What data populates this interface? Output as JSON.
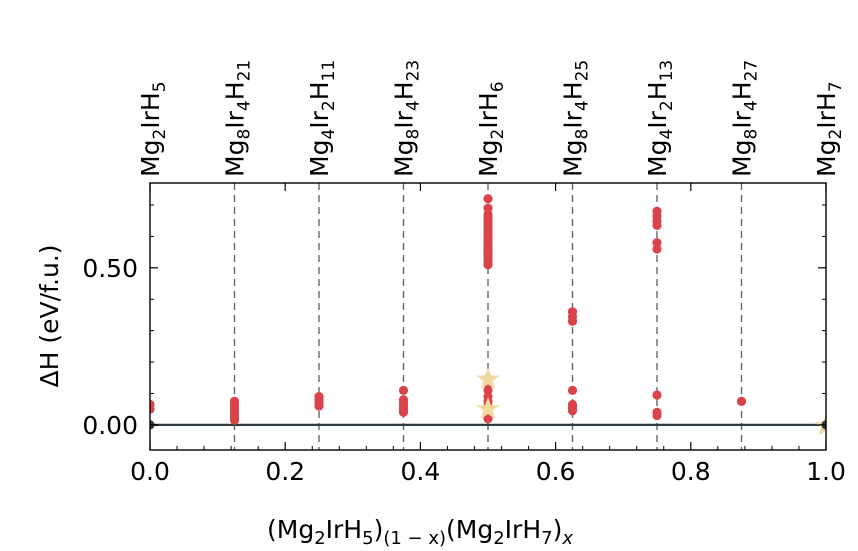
{
  "chart_data": {
    "type": "scatter",
    "xlabel": {
      "base": "(Mg",
      "s1": "2",
      "mid1": "IrH",
      "s2": "5",
      "mid2": ")",
      "s3": "(1 − x)",
      "mid3": "(Mg",
      "s4": "2",
      "mid4": "IrH",
      "s5": "7",
      "mid5": ")",
      "s6": "x"
    },
    "ylabel": "ΔH (eV/f.u.)",
    "xlim": [
      0,
      1
    ],
    "ylim": [
      -0.08,
      0.77
    ],
    "x_ticks": [
      0.0,
      0.2,
      0.4,
      0.6,
      0.8,
      1.0
    ],
    "x_tick_labels": [
      "0.0",
      "0.2",
      "0.4",
      "0.6",
      "0.8",
      "1.0"
    ],
    "y_ticks": [
      0.0,
      0.5
    ],
    "y_tick_labels": [
      "0.00",
      "0.50"
    ],
    "top_axis_labels": [
      {
        "x": 0.0,
        "parts": [
          [
            "Mg",
            ""
          ],
          [
            "2",
            "s"
          ],
          [
            "IrH",
            ""
          ],
          [
            "5",
            "s"
          ]
        ]
      },
      {
        "x": 0.125,
        "parts": [
          [
            "Mg",
            ""
          ],
          [
            "8",
            "s"
          ],
          [
            "Ir",
            ""
          ],
          [
            "4",
            "s"
          ],
          [
            "H",
            ""
          ],
          [
            "21",
            "s"
          ]
        ]
      },
      {
        "x": 0.25,
        "parts": [
          [
            "Mg",
            ""
          ],
          [
            "4",
            "s"
          ],
          [
            "Ir",
            ""
          ],
          [
            "2",
            "s"
          ],
          [
            "H",
            ""
          ],
          [
            "11",
            "s"
          ]
        ]
      },
      {
        "x": 0.375,
        "parts": [
          [
            "Mg",
            ""
          ],
          [
            "8",
            "s"
          ],
          [
            "Ir",
            ""
          ],
          [
            "4",
            "s"
          ],
          [
            "H",
            ""
          ],
          [
            "23",
            "s"
          ]
        ]
      },
      {
        "x": 0.5,
        "parts": [
          [
            "Mg",
            ""
          ],
          [
            "2",
            "s"
          ],
          [
            "IrH",
            ""
          ],
          [
            "6",
            "s"
          ]
        ]
      },
      {
        "x": 0.625,
        "parts": [
          [
            "Mg",
            ""
          ],
          [
            "8",
            "s"
          ],
          [
            "Ir",
            ""
          ],
          [
            "4",
            "s"
          ],
          [
            "H",
            ""
          ],
          [
            "25",
            "s"
          ]
        ]
      },
      {
        "x": 0.75,
        "parts": [
          [
            "Mg",
            ""
          ],
          [
            "4",
            "s"
          ],
          [
            "Ir",
            ""
          ],
          [
            "2",
            "s"
          ],
          [
            "H",
            ""
          ],
          [
            "13",
            "s"
          ]
        ]
      },
      {
        "x": 0.875,
        "parts": [
          [
            "Mg",
            ""
          ],
          [
            "8",
            "s"
          ],
          [
            "Ir",
            ""
          ],
          [
            "4",
            "s"
          ],
          [
            "H",
            ""
          ],
          [
            "27",
            "s"
          ]
        ]
      },
      {
        "x": 1.0,
        "parts": [
          [
            "Mg",
            ""
          ],
          [
            "2",
            "s"
          ],
          [
            "IrH",
            ""
          ],
          [
            "7",
            "s"
          ]
        ]
      }
    ],
    "dashed_lines_x": [
      0.125,
      0.25,
      0.375,
      0.5,
      0.625,
      0.75,
      0.875
    ],
    "hull_line": {
      "x": [
        0,
        1
      ],
      "y": [
        0,
        0
      ],
      "color": "#2f3b40"
    },
    "series": [
      {
        "marker": "circle",
        "color": "#d9434a",
        "points": [
          [
            0.0,
            0.065
          ],
          [
            0.0,
            0.05
          ],
          [
            0.125,
            0.075
          ],
          [
            0.125,
            0.065
          ],
          [
            0.125,
            0.055
          ],
          [
            0.125,
            0.045
          ],
          [
            0.125,
            0.035
          ],
          [
            0.125,
            0.025
          ],
          [
            0.125,
            0.015
          ],
          [
            0.25,
            0.09
          ],
          [
            0.25,
            0.08
          ],
          [
            0.25,
            0.07
          ],
          [
            0.25,
            0.06
          ],
          [
            0.375,
            0.11
          ],
          [
            0.375,
            0.08
          ],
          [
            0.375,
            0.07
          ],
          [
            0.375,
            0.06
          ],
          [
            0.375,
            0.05
          ],
          [
            0.375,
            0.04
          ],
          [
            0.5,
            0.72
          ],
          [
            0.5,
            0.69
          ],
          [
            0.5,
            0.67
          ],
          [
            0.5,
            0.66
          ],
          [
            0.5,
            0.65
          ],
          [
            0.5,
            0.64
          ],
          [
            0.5,
            0.63
          ],
          [
            0.5,
            0.62
          ],
          [
            0.5,
            0.61
          ],
          [
            0.5,
            0.6
          ],
          [
            0.5,
            0.59
          ],
          [
            0.5,
            0.58
          ],
          [
            0.5,
            0.57
          ],
          [
            0.5,
            0.56
          ],
          [
            0.5,
            0.55
          ],
          [
            0.5,
            0.54
          ],
          [
            0.5,
            0.53
          ],
          [
            0.5,
            0.52
          ],
          [
            0.5,
            0.51
          ],
          [
            0.5,
            0.13
          ],
          [
            0.5,
            0.11
          ],
          [
            0.5,
            0.09
          ],
          [
            0.5,
            0.075
          ],
          [
            0.5,
            0.06
          ],
          [
            0.5,
            0.02
          ],
          [
            0.625,
            0.36
          ],
          [
            0.625,
            0.345
          ],
          [
            0.625,
            0.33
          ],
          [
            0.625,
            0.11
          ],
          [
            0.625,
            0.065
          ],
          [
            0.625,
            0.055
          ],
          [
            0.625,
            0.045
          ],
          [
            0.75,
            0.68
          ],
          [
            0.75,
            0.665
          ],
          [
            0.75,
            0.65
          ],
          [
            0.75,
            0.635
          ],
          [
            0.75,
            0.58
          ],
          [
            0.75,
            0.56
          ],
          [
            0.75,
            0.095
          ],
          [
            0.75,
            0.04
          ],
          [
            0.75,
            0.03
          ],
          [
            0.875,
            0.075
          ]
        ]
      },
      {
        "marker": "star",
        "color": "#f2d9a0",
        "points": [
          [
            0.5,
            0.145
          ],
          [
            0.5,
            0.05
          ],
          [
            1.0,
            -0.003
          ]
        ]
      },
      {
        "marker": "circle",
        "color": "#2f3b40",
        "points": [
          [
            0.0,
            0.0
          ],
          [
            1.0,
            0.0
          ]
        ]
      }
    ]
  }
}
